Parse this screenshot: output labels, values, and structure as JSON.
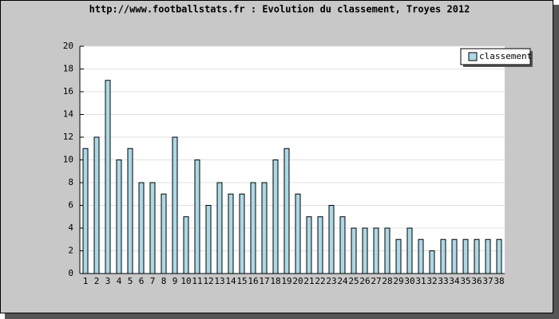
{
  "chart_data": {
    "type": "bar",
    "title": "http://www.footballstats.fr : Evolution du classement, Troyes 2012",
    "categories": [
      "1",
      "2",
      "3",
      "4",
      "5",
      "6",
      "7",
      "8",
      "9",
      "10",
      "11",
      "12",
      "13",
      "14",
      "15",
      "16",
      "17",
      "18",
      "19",
      "20",
      "21",
      "22",
      "23",
      "24",
      "25",
      "26",
      "27",
      "28",
      "29",
      "30",
      "31",
      "32",
      "33",
      "34",
      "35",
      "36",
      "37",
      "38"
    ],
    "series": [
      {
        "name": "classement",
        "color": "#add8e6",
        "values": [
          11,
          12,
          17,
          10,
          11,
          8,
          8,
          7,
          12,
          5,
          10,
          6,
          8,
          7,
          7,
          8,
          8,
          10,
          11,
          7,
          5,
          5,
          6,
          5,
          4,
          4,
          4,
          4,
          3,
          4,
          3,
          2,
          3,
          3,
          3,
          3,
          3,
          3
        ]
      }
    ],
    "ylim": [
      0,
      20
    ],
    "yticks": [
      0,
      2,
      4,
      6,
      8,
      10,
      12,
      14,
      16,
      18,
      20
    ],
    "grid": true,
    "legend": "top-right"
  }
}
